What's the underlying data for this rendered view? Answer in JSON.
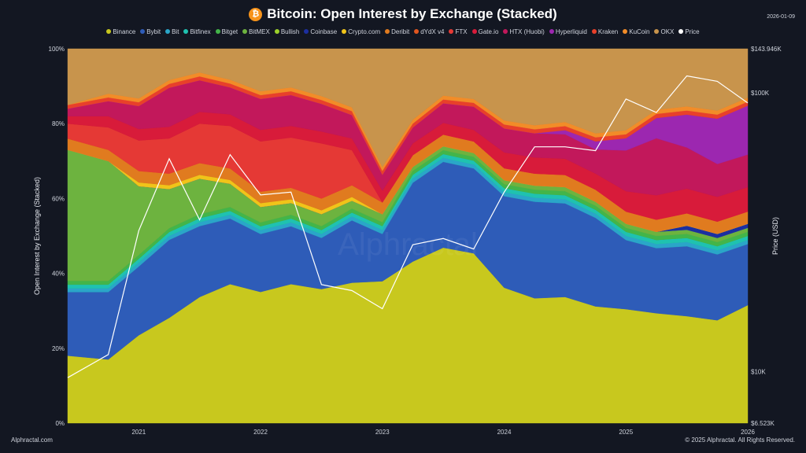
{
  "title": "Bitcoin: Open Interest by Exchange (Stacked)",
  "date": "2026-01-09",
  "watermark": "Alphractal",
  "footer_left": "Alphractal.com",
  "footer_right": "© 2025 Alphractal. All Rights Reserved.",
  "icon": "bitcoin-icon",
  "chart_data": {
    "type": "area",
    "title": "Bitcoin: Open Interest by Exchange (Stacked)",
    "ylabel": "Open Interest by Exchange (Stacked)",
    "y2label": "Price (USD)",
    "ylim": [
      0,
      100
    ],
    "y2scale": "log",
    "y2lim": [
      6523,
      143946
    ],
    "y_ticks": [
      "0%",
      "20%",
      "40%",
      "60%",
      "80%",
      "100%"
    ],
    "y2_ticks": [
      {
        "label": "$6.523K",
        "value": 6523
      },
      {
        "label": "$10K",
        "value": 10000
      },
      {
        "label": "$100K",
        "value": 100000
      },
      {
        "label": "$143.946K",
        "value": 143946
      }
    ],
    "x_ticks": [
      "2021",
      "2022",
      "2023",
      "2024",
      "2025",
      "2026"
    ],
    "x": [
      "2020-06",
      "2020-10",
      "2021-01",
      "2021-04",
      "2021-07",
      "2021-10",
      "2022-01",
      "2022-04",
      "2022-07",
      "2022-10",
      "2023-01",
      "2023-04",
      "2023-07",
      "2023-10",
      "2024-01",
      "2024-04",
      "2024-07",
      "2024-10",
      "2025-01",
      "2025-04",
      "2025-07",
      "2025-10",
      "2026-01"
    ],
    "series": [
      {
        "name": "Binance",
        "color": "#c8c81e",
        "values": [
          18,
          17,
          23,
          27,
          32,
          36,
          34,
          36,
          34,
          36,
          36,
          41,
          45,
          44,
          34,
          31,
          31,
          29,
          28,
          27,
          26,
          25,
          29
        ]
      },
      {
        "name": "Bybit",
        "color": "#2e5cb8",
        "values": [
          17,
          18,
          18,
          20,
          18,
          17,
          15,
          15,
          13,
          16,
          12,
          20,
          22,
          22,
          23,
          24,
          23,
          22,
          17,
          16,
          17,
          16,
          15
        ]
      },
      {
        "name": "Bit",
        "color": "#2aa6c8",
        "values": [
          1,
          1,
          1,
          1,
          1,
          1,
          1,
          1,
          1,
          1,
          1,
          1,
          1,
          1,
          1,
          1,
          1,
          1,
          1,
          1,
          1,
          1,
          1
        ]
      },
      {
        "name": "Bitfinex",
        "color": "#1fc2b0",
        "values": [
          1,
          1,
          1,
          1,
          1,
          1,
          1,
          1,
          1,
          1,
          1,
          1,
          1,
          1,
          1,
          1,
          1,
          1,
          1,
          1,
          1,
          1,
          1
        ]
      },
      {
        "name": "Bitget",
        "color": "#43b549",
        "values": [
          1,
          1,
          1,
          1,
          1,
          1,
          1,
          1,
          1,
          1,
          1,
          1,
          1,
          1,
          1,
          1,
          1,
          1,
          1,
          1,
          1,
          1,
          1
        ]
      },
      {
        "name": "BitMEX",
        "color": "#6db33f",
        "values": [
          35,
          32,
          18,
          10,
          9,
          6,
          4,
          3,
          3,
          2,
          2,
          1,
          1,
          1,
          1,
          1,
          1,
          1,
          1,
          1,
          1,
          1,
          1
        ]
      },
      {
        "name": "Bullish",
        "color": "#9cd12b",
        "values": [
          0,
          0,
          0,
          0,
          0,
          0,
          0,
          0,
          0,
          0,
          0,
          0,
          0,
          0,
          0,
          0,
          0,
          0,
          0,
          0,
          0,
          0,
          0
        ]
      },
      {
        "name": "Coinbase",
        "color": "#1c2fa0",
        "values": [
          0,
          0,
          0,
          0,
          0,
          0,
          0,
          0,
          0,
          0,
          0,
          0,
          0,
          0,
          0,
          0,
          0,
          0,
          0,
          0,
          1,
          1,
          1
        ]
      },
      {
        "name": "Crypto.com",
        "color": "#f0c419",
        "values": [
          0,
          0,
          1,
          1,
          1,
          1,
          1,
          1,
          1,
          1,
          0,
          0,
          0,
          0,
          0,
          0,
          0,
          0,
          0,
          0,
          0,
          0,
          0
        ]
      },
      {
        "name": "Deribit",
        "color": "#e07b1f",
        "values": [
          3,
          3,
          3,
          3,
          3,
          3,
          3,
          3,
          3,
          3,
          3,
          3,
          3,
          3,
          3,
          3,
          3,
          3,
          3,
          3,
          3,
          3,
          3
        ]
      },
      {
        "name": "dYdX v4",
        "color": "#e0561f",
        "values": [
          0,
          0,
          0,
          0,
          0,
          0,
          0,
          0,
          0,
          0,
          0,
          0,
          0,
          0,
          0,
          0,
          0,
          0,
          0,
          0,
          0,
          0,
          0
        ]
      },
      {
        "name": "FTX",
        "color": "#e53935",
        "values": [
          4,
          6,
          8,
          9,
          10,
          11,
          13,
          13,
          14,
          9,
          0,
          0,
          0,
          0,
          0,
          0,
          0,
          0,
          0,
          0,
          0,
          0,
          0
        ]
      },
      {
        "name": "Gate.io",
        "color": "#d81b3a",
        "values": [
          2,
          3,
          3,
          3,
          3,
          3,
          3,
          3,
          3,
          3,
          3,
          3,
          3,
          3,
          4,
          4,
          4,
          4,
          5,
          6,
          6,
          6,
          6
        ]
      },
      {
        "name": "HTX (Huobi)",
        "color": "#c2185b",
        "values": [
          2,
          4,
          6,
          10,
          8,
          7,
          8,
          8,
          7,
          6,
          4,
          4,
          5,
          6,
          6,
          6,
          6,
          6,
          10,
          14,
          10,
          8,
          8
        ]
      },
      {
        "name": "Hyperliquid",
        "color": "#9c27b0",
        "values": [
          0,
          0,
          0,
          0,
          0,
          0,
          0,
          0,
          0,
          0,
          0,
          0,
          0,
          0,
          0,
          0,
          1,
          2,
          3,
          5,
          8,
          11,
          12
        ]
      },
      {
        "name": "Kraken",
        "color": "#e8402a",
        "values": [
          1,
          1,
          1,
          1,
          1,
          1,
          1,
          1,
          1,
          1,
          1,
          1,
          1,
          1,
          1,
          1,
          1,
          1,
          1,
          1,
          1,
          1,
          1
        ]
      },
      {
        "name": "KuCoin",
        "color": "#f28c28",
        "values": [
          0,
          1,
          1,
          1,
          1,
          1,
          1,
          1,
          1,
          1,
          1,
          1,
          1,
          1,
          1,
          1,
          1,
          1,
          1,
          1,
          1,
          1,
          1
        ]
      },
      {
        "name": "OKX",
        "color": "#c8944c",
        "values": [
          15,
          12,
          13,
          8,
          6,
          8,
          11,
          10,
          12,
          15,
          30,
          18,
          12,
          13,
          18,
          19,
          18,
          21,
          20,
          15,
          14,
          15,
          12
        ]
      }
    ],
    "price": {
      "name": "Price",
      "color": "#ffffff",
      "values": [
        9500,
        11500,
        32000,
        58000,
        35000,
        60000,
        43000,
        44000,
        20500,
        19500,
        16800,
        28500,
        30000,
        27500,
        44000,
        64000,
        64000,
        62000,
        95000,
        85000,
        115000,
        110000,
        92000
      ]
    }
  }
}
